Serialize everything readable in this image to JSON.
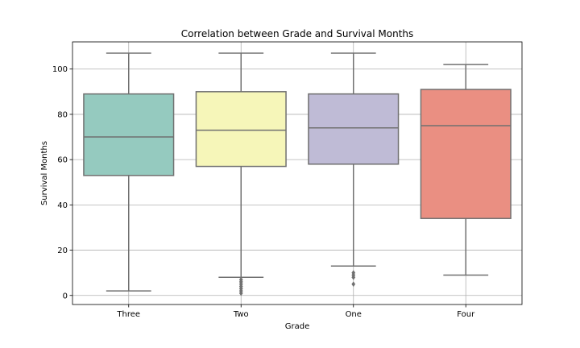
{
  "chart_data": {
    "type": "box",
    "title": "Correlation between Grade and Survival Months",
    "xlabel": "Grade",
    "ylabel": "Survival Months",
    "ylim": [
      -4,
      112
    ],
    "yticks": [
      0,
      20,
      40,
      60,
      80,
      100
    ],
    "grid": true,
    "categories": [
      "Three",
      "Two",
      "One",
      "Four"
    ],
    "series": [
      {
        "category": "Three",
        "whisker_low": 2,
        "q1": 53,
        "median": 70,
        "q3": 89,
        "whisker_high": 107,
        "outliers": [],
        "color": "#95cabf"
      },
      {
        "category": "Two",
        "whisker_low": 8,
        "q1": 57,
        "median": 73,
        "q3": 90,
        "whisker_high": 107,
        "outliers": [
          7,
          6,
          5,
          4,
          3,
          2,
          1
        ],
        "color": "#f6f6b9"
      },
      {
        "category": "One",
        "whisker_low": 13,
        "q1": 58,
        "median": 74,
        "q3": 89,
        "whisker_high": 107,
        "outliers": [
          10,
          9,
          8,
          5
        ],
        "color": "#bfbbd6"
      },
      {
        "category": "Four",
        "whisker_low": 9,
        "q1": 34,
        "median": 75,
        "q3": 91,
        "whisker_high": 102,
        "outliers": [],
        "color": "#ea8f82"
      }
    ]
  }
}
